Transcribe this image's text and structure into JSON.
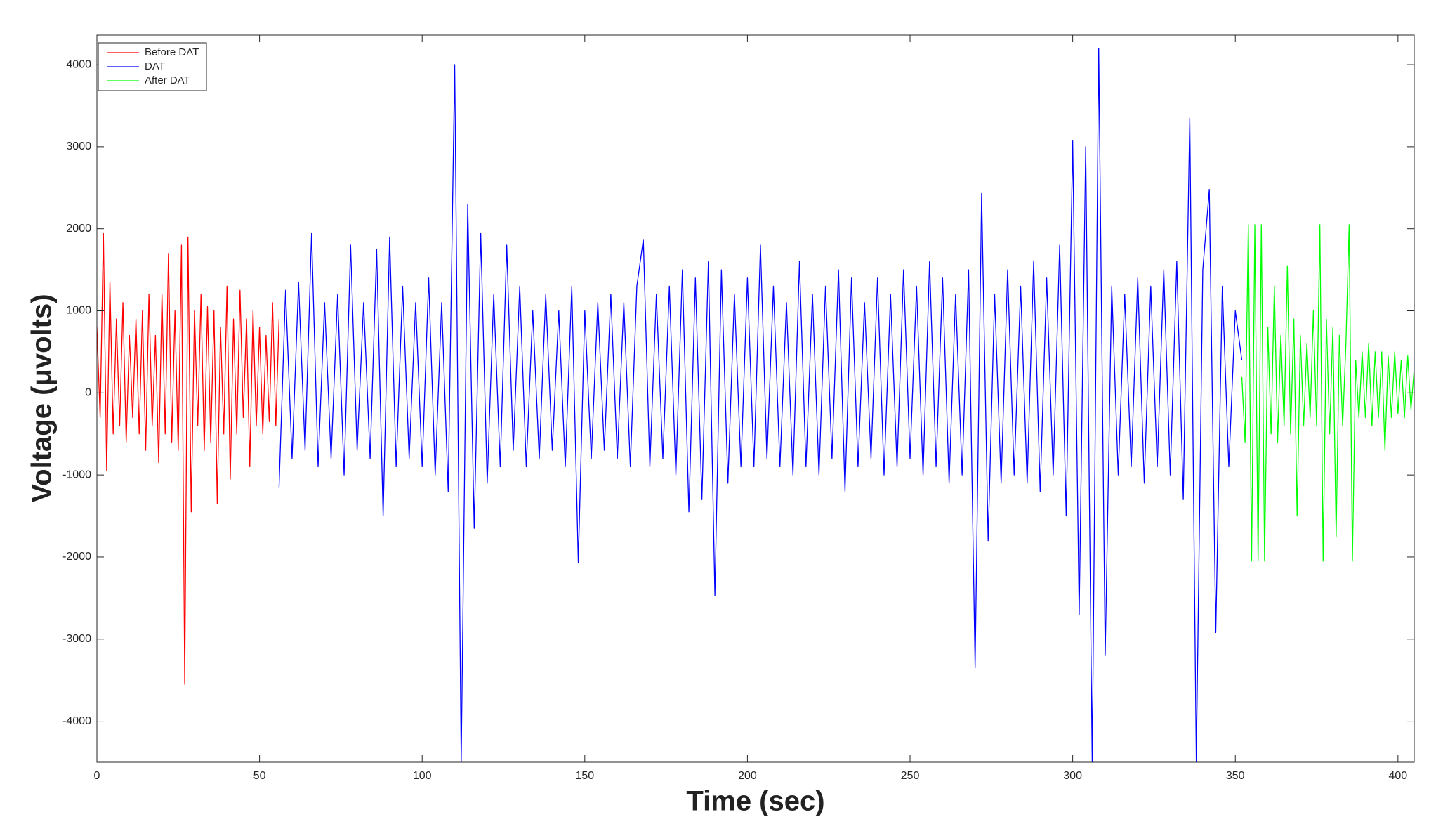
{
  "chart_data": {
    "type": "line",
    "xlabel": "Time (sec)",
    "ylabel": "Voltage (μvolts)",
    "xlim": [
      0,
      405
    ],
    "ylim": [
      -4500,
      4360
    ],
    "xticks": [
      0,
      50,
      100,
      150,
      200,
      250,
      300,
      350,
      400
    ],
    "yticks": [
      -4000,
      -3000,
      -2000,
      -1000,
      0,
      1000,
      2000,
      3000,
      4000
    ],
    "grid": false,
    "legend": "upper left",
    "series": [
      {
        "name": "Before DAT",
        "color": "#ff0000",
        "x": [
          0,
          1,
          2,
          3,
          4,
          5,
          6,
          7,
          8,
          9,
          10,
          11,
          12,
          13,
          14,
          15,
          16,
          17,
          18,
          19,
          20,
          21,
          22,
          23,
          24,
          25,
          26,
          27,
          28,
          29,
          30,
          31,
          32,
          33,
          34,
          35,
          36,
          37,
          38,
          39,
          40,
          41,
          42,
          43,
          44,
          45,
          46,
          47,
          48,
          49,
          50,
          51,
          52,
          53,
          54,
          55,
          56
        ],
        "values": [
          800,
          -300,
          1950,
          -950,
          1350,
          -500,
          900,
          -400,
          1100,
          -600,
          700,
          -300,
          900,
          -500,
          1000,
          -700,
          1200,
          -400,
          700,
          -850,
          1200,
          -500,
          1700,
          -600,
          1000,
          -700,
          1800,
          -3550,
          1900,
          -1450,
          1000,
          -400,
          1200,
          -700,
          1050,
          -600,
          1000,
          -1350,
          800,
          -500,
          1300,
          -1050,
          900,
          -500,
          1250,
          -300,
          900,
          -900,
          1000,
          -400,
          800,
          -500,
          700,
          -350,
          1100,
          -400,
          900
        ]
      },
      {
        "name": "DAT",
        "color": "#0000ff",
        "x": [
          56,
          58,
          60,
          62,
          64,
          66,
          68,
          70,
          72,
          74,
          76,
          78,
          80,
          82,
          84,
          86,
          88,
          90,
          92,
          94,
          96,
          98,
          100,
          102,
          104,
          106,
          108,
          110,
          112,
          114,
          116,
          118,
          120,
          122,
          124,
          126,
          128,
          130,
          132,
          134,
          136,
          138,
          140,
          142,
          144,
          146,
          148,
          150,
          152,
          154,
          156,
          158,
          160,
          162,
          164,
          166,
          168,
          170,
          172,
          174,
          176,
          178,
          180,
          182,
          184,
          186,
          188,
          190,
          192,
          194,
          196,
          198,
          200,
          202,
          204,
          206,
          208,
          210,
          212,
          214,
          216,
          218,
          220,
          222,
          224,
          226,
          228,
          230,
          232,
          234,
          236,
          238,
          240,
          242,
          244,
          246,
          248,
          250,
          252,
          254,
          256,
          258,
          260,
          262,
          264,
          266,
          268,
          270,
          272,
          274,
          276,
          278,
          280,
          282,
          284,
          286,
          288,
          290,
          292,
          294,
          296,
          298,
          300,
          302,
          304,
          306,
          308,
          310,
          312,
          314,
          316,
          318,
          320,
          322,
          324,
          326,
          328,
          330,
          332,
          334,
          336,
          338,
          340,
          342,
          344,
          346,
          348,
          350,
          352
        ],
        "values": [
          -1150,
          1250,
          -800,
          1350,
          -700,
          1950,
          -900,
          1100,
          -800,
          1200,
          -1000,
          1800,
          -700,
          1100,
          -800,
          1750,
          -1500,
          1900,
          -900,
          1300,
          -800,
          1100,
          -900,
          1400,
          -1000,
          1100,
          -1200,
          4000,
          -4500,
          2300,
          -1650,
          1950,
          -1100,
          1200,
          -900,
          1800,
          -700,
          1300,
          -900,
          1000,
          -800,
          1200,
          -700,
          1000,
          -900,
          1300,
          -2070,
          1000,
          -800,
          1100,
          -700,
          1200,
          -800,
          1100,
          -900,
          1300,
          1870,
          -900,
          1200,
          -800,
          1300,
          -1000,
          1500,
          -1450,
          1400,
          -1300,
          1600,
          -2470,
          1500,
          -1100,
          1200,
          -900,
          1400,
          -900,
          1800,
          -800,
          1300,
          -900,
          1100,
          -1000,
          1600,
          -900,
          1200,
          -1000,
          1300,
          -800,
          1500,
          -1200,
          1400,
          -900,
          1100,
          -800,
          1400,
          -1000,
          1200,
          -900,
          1500,
          -800,
          1300,
          -1000,
          1600,
          -900,
          1400,
          -1100,
          1200,
          -1000,
          1500,
          -3350,
          2430,
          -1800,
          1200,
          -1100,
          1500,
          -1000,
          1300,
          -1100,
          1600,
          -1200,
          1400,
          -1000,
          1800,
          -1500,
          3070,
          -2700,
          3000,
          -4500,
          4200,
          -3200,
          1300,
          -1000,
          1200,
          -900,
          1400,
          -1100,
          1300,
          -900,
          1500,
          -1000,
          1600,
          -1300,
          3350,
          -4500,
          1500,
          2480,
          -2920,
          1300,
          -900,
          1000,
          400
        ]
      },
      {
        "name": "After DAT",
        "color": "#00ff00",
        "x": [
          352,
          353,
          354,
          355,
          356,
          357,
          358,
          359,
          360,
          361,
          362,
          363,
          364,
          365,
          366,
          367,
          368,
          369,
          370,
          371,
          372,
          373,
          374,
          375,
          376,
          377,
          378,
          379,
          380,
          381,
          382,
          383,
          384,
          385,
          386,
          387,
          388,
          389,
          390,
          391,
          392,
          393,
          394,
          395,
          396,
          397,
          398,
          399,
          400,
          401,
          402,
          403,
          404,
          405
        ],
        "values": [
          200,
          -600,
          2050,
          -2050,
          2050,
          -2050,
          2050,
          -2050,
          800,
          -500,
          1300,
          -600,
          700,
          -400,
          1550,
          -500,
          900,
          -1500,
          700,
          -400,
          600,
          -300,
          1000,
          -400,
          2050,
          -2050,
          900,
          -500,
          800,
          -1750,
          700,
          -400,
          600,
          2050,
          -2050,
          400,
          -300,
          500,
          -300,
          600,
          -400,
          500,
          -300,
          500,
          -700,
          450,
          -300,
          500,
          -250,
          400,
          -300,
          450,
          -200,
          300
        ]
      }
    ]
  }
}
